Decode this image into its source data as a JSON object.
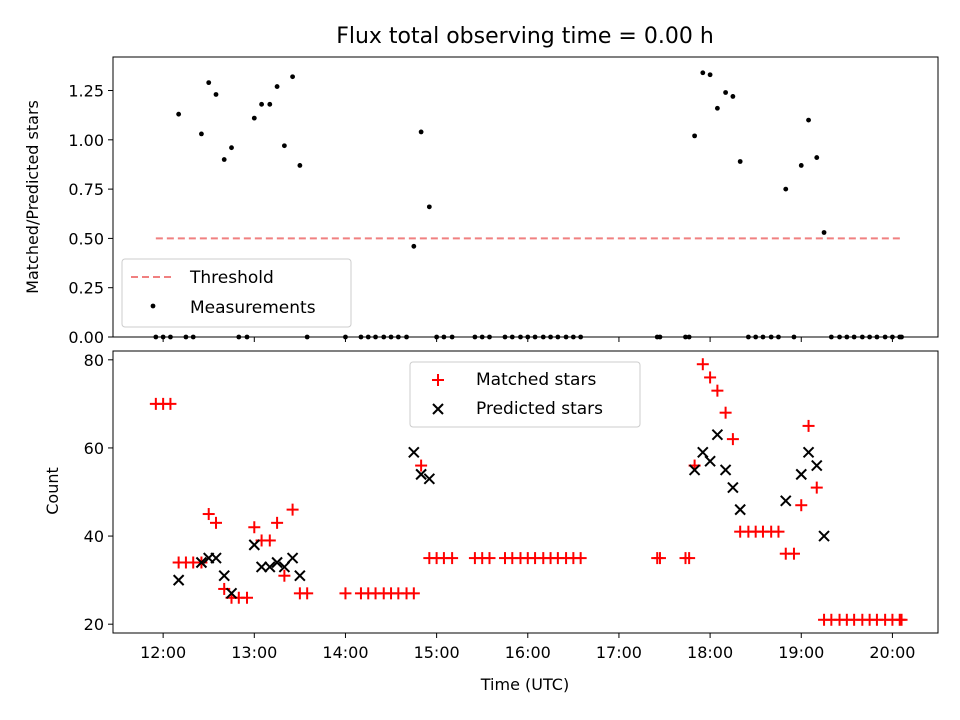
{
  "chart_data": {
    "title": "Flux total observing time = 0.00 h",
    "x_ticks": [
      "12:00",
      "13:00",
      "14:00",
      "15:00",
      "16:00",
      "17:00",
      "18:00",
      "19:00",
      "20:00"
    ],
    "x_tick_values": [
      12,
      13,
      14,
      15,
      16,
      17,
      18,
      19,
      20
    ],
    "xlim": [
      11.45,
      20.5
    ],
    "xlabel": "Time (UTC)",
    "panels": [
      {
        "type": "scatter",
        "ylabel": "Matched/Predicted stars",
        "ylim": [
          0,
          1.42
        ],
        "y_ticks": [
          "0.00",
          "0.25",
          "0.50",
          "0.75",
          "1.00",
          "1.25"
        ],
        "y_tick_values": [
          0,
          0.25,
          0.5,
          0.75,
          1.0,
          1.25
        ],
        "legend": [
          "Threshold",
          "Measurements"
        ],
        "legend_position": "lower-left",
        "threshold": {
          "name": "Threshold",
          "x": [
            11.92,
            20.1
          ],
          "y": 0.5,
          "color": "#f08080"
        },
        "series": [
          {
            "name": "Measurements",
            "color": "#000000",
            "points": [
              [
                11.92,
                0
              ],
              [
                12.0,
                0
              ],
              [
                12.08,
                0
              ],
              [
                12.17,
                1.13
              ],
              [
                12.25,
                0
              ],
              [
                12.33,
                0
              ],
              [
                12.42,
                1.03
              ],
              [
                12.5,
                1.29
              ],
              [
                12.58,
                1.23
              ],
              [
                12.67,
                0.9
              ],
              [
                12.75,
                0.96
              ],
              [
                12.83,
                0
              ],
              [
                12.92,
                0
              ],
              [
                13.0,
                1.11
              ],
              [
                13.08,
                1.18
              ],
              [
                13.17,
                1.18
              ],
              [
                13.25,
                1.27
              ],
              [
                13.33,
                0.97
              ],
              [
                13.42,
                1.32
              ],
              [
                13.5,
                0.87
              ],
              [
                13.58,
                0
              ],
              [
                14.0,
                0
              ],
              [
                14.17,
                0
              ],
              [
                14.25,
                0
              ],
              [
                14.33,
                0
              ],
              [
                14.42,
                0
              ],
              [
                14.5,
                0
              ],
              [
                14.58,
                0
              ],
              [
                14.67,
                0
              ],
              [
                14.75,
                0.46
              ],
              [
                14.83,
                1.04
              ],
              [
                14.92,
                0.66
              ],
              [
                15.0,
                0
              ],
              [
                15.08,
                0
              ],
              [
                15.17,
                0
              ],
              [
                15.42,
                0
              ],
              [
                15.5,
                0
              ],
              [
                15.58,
                0
              ],
              [
                15.75,
                0
              ],
              [
                15.83,
                0
              ],
              [
                15.92,
                0
              ],
              [
                16.0,
                0
              ],
              [
                16.08,
                0
              ],
              [
                16.17,
                0
              ],
              [
                16.25,
                0
              ],
              [
                16.33,
                0
              ],
              [
                16.42,
                0
              ],
              [
                16.5,
                0
              ],
              [
                16.58,
                0
              ],
              [
                17.42,
                0
              ],
              [
                17.45,
                0
              ],
              [
                17.73,
                0
              ],
              [
                17.77,
                0
              ],
              [
                17.83,
                1.02
              ],
              [
                17.92,
                1.34
              ],
              [
                18.0,
                1.33
              ],
              [
                18.08,
                1.16
              ],
              [
                18.17,
                1.24
              ],
              [
                18.25,
                1.22
              ],
              [
                18.33,
                0.89
              ],
              [
                18.42,
                0
              ],
              [
                18.5,
                0
              ],
              [
                18.58,
                0
              ],
              [
                18.67,
                0
              ],
              [
                18.75,
                0
              ],
              [
                18.83,
                0.75
              ],
              [
                18.92,
                0
              ],
              [
                19.0,
                0.87
              ],
              [
                19.08,
                1.1
              ],
              [
                19.17,
                0.91
              ],
              [
                19.25,
                0.53
              ],
              [
                19.33,
                0
              ],
              [
                19.42,
                0
              ],
              [
                19.5,
                0
              ],
              [
                19.58,
                0
              ],
              [
                19.67,
                0
              ],
              [
                19.75,
                0
              ],
              [
                19.83,
                0
              ],
              [
                19.92,
                0
              ],
              [
                20.0,
                0
              ],
              [
                20.08,
                0
              ],
              [
                20.1,
                0
              ]
            ]
          }
        ]
      },
      {
        "type": "scatter",
        "ylabel": "Count",
        "ylim": [
          18,
          82
        ],
        "y_ticks": [
          "20",
          "40",
          "60",
          "80"
        ],
        "y_tick_values": [
          20,
          40,
          60,
          80
        ],
        "legend": [
          "Matched stars",
          "Predicted stars"
        ],
        "legend_position": "upper-center",
        "series": [
          {
            "name": "Matched stars",
            "marker": "plus",
            "color": "#ff0000",
            "points": [
              [
                11.92,
                70
              ],
              [
                12.0,
                70
              ],
              [
                12.08,
                70
              ],
              [
                12.17,
                34
              ],
              [
                12.25,
                34
              ],
              [
                12.33,
                34
              ],
              [
                12.42,
                34
              ],
              [
                12.5,
                45
              ],
              [
                12.58,
                43
              ],
              [
                12.67,
                28
              ],
              [
                12.75,
                26
              ],
              [
                12.83,
                26
              ],
              [
                12.92,
                26
              ],
              [
                13.0,
                42
              ],
              [
                13.08,
                39
              ],
              [
                13.17,
                39
              ],
              [
                13.25,
                43
              ],
              [
                13.33,
                31
              ],
              [
                13.42,
                46
              ],
              [
                13.5,
                27
              ],
              [
                13.58,
                27
              ],
              [
                14.0,
                27
              ],
              [
                14.17,
                27
              ],
              [
                14.25,
                27
              ],
              [
                14.33,
                27
              ],
              [
                14.42,
                27
              ],
              [
                14.5,
                27
              ],
              [
                14.58,
                27
              ],
              [
                14.67,
                27
              ],
              [
                14.75,
                27
              ],
              [
                14.83,
                56
              ],
              [
                14.92,
                35
              ],
              [
                15.0,
                35
              ],
              [
                15.08,
                35
              ],
              [
                15.17,
                35
              ],
              [
                15.42,
                35
              ],
              [
                15.5,
                35
              ],
              [
                15.58,
                35
              ],
              [
                15.75,
                35
              ],
              [
                15.83,
                35
              ],
              [
                15.92,
                35
              ],
              [
                16.0,
                35
              ],
              [
                16.08,
                35
              ],
              [
                16.17,
                35
              ],
              [
                16.25,
                35
              ],
              [
                16.33,
                35
              ],
              [
                16.42,
                35
              ],
              [
                16.5,
                35
              ],
              [
                16.58,
                35
              ],
              [
                17.42,
                35
              ],
              [
                17.45,
                35
              ],
              [
                17.73,
                35
              ],
              [
                17.77,
                35
              ],
              [
                17.83,
                56
              ],
              [
                17.92,
                79
              ],
              [
                18.0,
                76
              ],
              [
                18.08,
                73
              ],
              [
                18.17,
                68
              ],
              [
                18.25,
                62
              ],
              [
                18.33,
                41
              ],
              [
                18.42,
                41
              ],
              [
                18.5,
                41
              ],
              [
                18.58,
                41
              ],
              [
                18.67,
                41
              ],
              [
                18.75,
                41
              ],
              [
                18.83,
                36
              ],
              [
                18.92,
                36
              ],
              [
                19.0,
                47
              ],
              [
                19.08,
                65
              ],
              [
                19.17,
                51
              ],
              [
                19.25,
                21
              ],
              [
                19.33,
                21
              ],
              [
                19.42,
                21
              ],
              [
                19.5,
                21
              ],
              [
                19.58,
                21
              ],
              [
                19.67,
                21
              ],
              [
                19.75,
                21
              ],
              [
                19.83,
                21
              ],
              [
                19.92,
                21
              ],
              [
                20.0,
                21
              ],
              [
                20.08,
                21
              ],
              [
                20.1,
                21
              ]
            ]
          },
          {
            "name": "Predicted stars",
            "marker": "x",
            "color": "#000000",
            "points": [
              [
                12.17,
                30
              ],
              [
                12.42,
                34
              ],
              [
                12.5,
                35
              ],
              [
                12.58,
                35
              ],
              [
                12.67,
                31
              ],
              [
                12.75,
                27
              ],
              [
                13.0,
                38
              ],
              [
                13.08,
                33
              ],
              [
                13.17,
                33
              ],
              [
                13.25,
                34
              ],
              [
                13.33,
                33
              ],
              [
                13.42,
                35
              ],
              [
                13.5,
                31
              ],
              [
                14.75,
                59
              ],
              [
                14.83,
                54
              ],
              [
                14.92,
                53
              ],
              [
                17.83,
                55
              ],
              [
                17.92,
                59
              ],
              [
                18.0,
                57
              ],
              [
                18.08,
                63
              ],
              [
                18.17,
                55
              ],
              [
                18.25,
                51
              ],
              [
                18.33,
                46
              ],
              [
                18.83,
                48
              ],
              [
                19.0,
                54
              ],
              [
                19.08,
                59
              ],
              [
                19.17,
                56
              ],
              [
                19.25,
                40
              ]
            ]
          }
        ]
      }
    ]
  }
}
